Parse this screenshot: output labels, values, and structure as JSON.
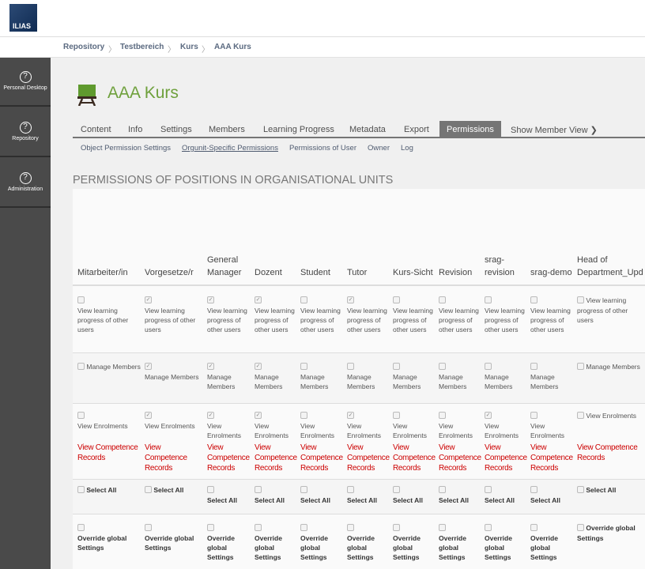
{
  "header": {
    "logo": "ILIAS"
  },
  "breadcrumb": [
    "Repository",
    "Testbereich",
    "Kurs",
    "AAA Kurs"
  ],
  "sidebar": {
    "items": [
      {
        "label": "Personal Desktop",
        "icon": "help-circle-icon"
      },
      {
        "label": "Repository",
        "icon": "help-circle-icon"
      },
      {
        "label": "Administration",
        "icon": "help-circle-icon"
      }
    ]
  },
  "page": {
    "title": "AAA Kurs",
    "heading": "PERMISSIONS OF POSITIONS IN ORGANISATIONAL UNITS"
  },
  "tabs": [
    {
      "label": "Content"
    },
    {
      "label": "Info"
    },
    {
      "label": "Settings"
    },
    {
      "label": "Members"
    },
    {
      "label": "Learning Progress"
    },
    {
      "label": "Metadata"
    },
    {
      "label": "Export"
    },
    {
      "label": "Permissions",
      "active": true
    },
    {
      "label": "Show Member View ❯"
    }
  ],
  "subtabs": [
    {
      "label": "Object Permission Settings"
    },
    {
      "label": "Orgunit-Specific Permissions",
      "active": true
    },
    {
      "label": "Permissions of User"
    },
    {
      "label": "Owner"
    },
    {
      "label": "Log"
    }
  ],
  "table": {
    "permission_labels": [
      "View learning progress of other users",
      "Manage Members",
      "View Enrolments"
    ],
    "extra_label": "View Competence Records",
    "select_all": "Select All",
    "override": "Override global Settings",
    "columns": [
      {
        "header": "Mitarbeiter/in",
        "perms": [
          false,
          false,
          false
        ],
        "override": false
      },
      {
        "header": "Vorgesetze/r",
        "perms": [
          true,
          true,
          true
        ],
        "override": false
      },
      {
        "header": "General Manager",
        "perms": [
          true,
          true,
          true
        ],
        "override": false
      },
      {
        "header": "Dozent",
        "perms": [
          true,
          true,
          true
        ],
        "override": false
      },
      {
        "header": "Student",
        "perms": [
          false,
          false,
          false
        ],
        "override": false
      },
      {
        "header": "Tutor",
        "perms": [
          true,
          false,
          true
        ],
        "override": false
      },
      {
        "header": "Kurs-Sicht",
        "perms": [
          false,
          false,
          false
        ],
        "override": false
      },
      {
        "header": "Revision",
        "perms": [
          false,
          false,
          false
        ],
        "override": false
      },
      {
        "header": "srag-revision",
        "perms": [
          false,
          false,
          true
        ],
        "override": false
      },
      {
        "header": "srag-demo",
        "perms": [
          false,
          false,
          false
        ],
        "override": false
      },
      {
        "header": "Head of Department_Upd",
        "perms": [
          false,
          false,
          false
        ],
        "override": false
      }
    ]
  }
}
